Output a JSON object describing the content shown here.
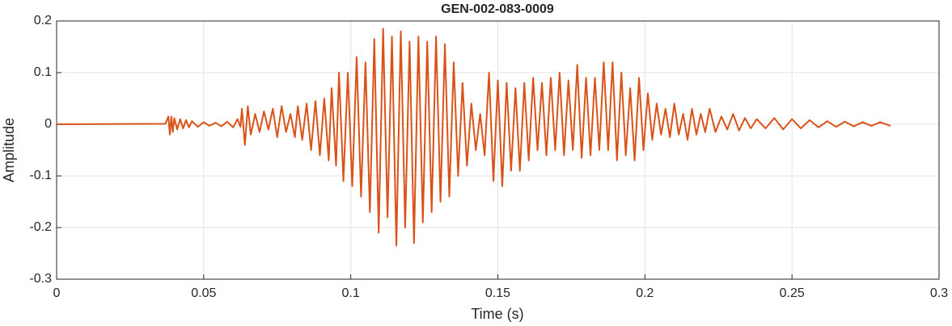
{
  "chart_data": {
    "type": "line",
    "title": "GEN-002-083-0009",
    "x_label": "Time (s)",
    "y_label": "Amplitude",
    "xlim": [
      0,
      0.3
    ],
    "ylim": [
      -0.3,
      0.2
    ],
    "xticks": [
      0,
      0.05,
      0.1,
      0.15,
      0.2,
      0.25,
      0.3
    ],
    "yticks": [
      -0.3,
      -0.2,
      -0.1,
      0,
      0.1,
      0.2
    ],
    "grid": true,
    "series": [
      {
        "name": "Amplitude",
        "color": "#d95319",
        "x": [
          0,
          0.037,
          0.038,
          0.0385,
          0.039,
          0.0395,
          0.04,
          0.041,
          0.042,
          0.043,
          0.044,
          0.045,
          0.046,
          0.048,
          0.05,
          0.052,
          0.054,
          0.056,
          0.058,
          0.06,
          0.0615,
          0.0625,
          0.063,
          0.064,
          0.065,
          0.066,
          0.0675,
          0.069,
          0.0705,
          0.072,
          0.0735,
          0.075,
          0.0765,
          0.078,
          0.0795,
          0.081,
          0.082,
          0.0835,
          0.085,
          0.0865,
          0.088,
          0.0895,
          0.091,
          0.0925,
          0.0935,
          0.095,
          0.096,
          0.0975,
          0.099,
          0.1005,
          0.102,
          0.1035,
          0.105,
          0.1065,
          0.108,
          0.1095,
          0.111,
          0.1125,
          0.114,
          0.1155,
          0.117,
          0.1185,
          0.12,
          0.1215,
          0.123,
          0.1245,
          0.126,
          0.1275,
          0.129,
          0.1305,
          0.132,
          0.1335,
          0.135,
          0.1365,
          0.138,
          0.1395,
          0.141,
          0.1425,
          0.144,
          0.1455,
          0.147,
          0.1485,
          0.15,
          0.1515,
          0.153,
          0.1545,
          0.156,
          0.1575,
          0.159,
          0.1605,
          0.162,
          0.1635,
          0.165,
          0.1665,
          0.168,
          0.1695,
          0.171,
          0.1725,
          0.174,
          0.1755,
          0.177,
          0.1785,
          0.18,
          0.1815,
          0.183,
          0.1845,
          0.186,
          0.1875,
          0.189,
          0.1905,
          0.192,
          0.1935,
          0.195,
          0.1965,
          0.198,
          0.1995,
          0.201,
          0.2025,
          0.204,
          0.2055,
          0.207,
          0.2085,
          0.21,
          0.2115,
          0.213,
          0.2145,
          0.216,
          0.2175,
          0.219,
          0.2205,
          0.222,
          0.224,
          0.226,
          0.228,
          0.23,
          0.232,
          0.234,
          0.236,
          0.238,
          0.241,
          0.244,
          0.247,
          0.25,
          0.253,
          0.256,
          0.259,
          0.262,
          0.265,
          0.268,
          0.271,
          0.274,
          0.277,
          0.28,
          0.2835
        ],
        "values": [
          0,
          0.001,
          0.015,
          -0.02,
          0.015,
          -0.015,
          0.012,
          -0.01,
          0.01,
          -0.008,
          0.008,
          -0.006,
          0.006,
          -0.005,
          0.004,
          -0.003,
          0.003,
          -0.004,
          0.005,
          -0.006,
          0.01,
          -0.005,
          0.03,
          -0.04,
          0.035,
          -0.02,
          0.02,
          -0.015,
          0.025,
          -0.01,
          0.03,
          -0.025,
          0.035,
          -0.015,
          0.02,
          -0.025,
          0.035,
          -0.03,
          0.04,
          -0.05,
          0.045,
          -0.06,
          0.05,
          -0.07,
          0.07,
          -0.08,
          0.1,
          -0.11,
          0.1,
          -0.12,
          0.13,
          -0.14,
          0.12,
          -0.17,
          0.165,
          -0.21,
          0.185,
          -0.18,
          0.17,
          -0.235,
          0.18,
          -0.2,
          0.16,
          -0.23,
          0.17,
          -0.19,
          0.16,
          -0.17,
          0.17,
          -0.15,
          0.155,
          -0.14,
          0.12,
          -0.1,
          0.08,
          -0.08,
          0.04,
          -0.05,
          0.02,
          -0.06,
          0.1,
          -0.11,
          0.085,
          -0.12,
          0.08,
          -0.09,
          0.07,
          -0.09,
          0.08,
          -0.07,
          0.09,
          -0.05,
          0.08,
          -0.06,
          0.09,
          -0.05,
          0.1,
          -0.06,
          0.085,
          -0.05,
          0.115,
          -0.065,
          0.09,
          -0.06,
          0.09,
          -0.05,
          0.12,
          -0.05,
          0.12,
          -0.07,
          0.1,
          -0.06,
          0.07,
          -0.07,
          0.09,
          -0.05,
          0.06,
          -0.03,
          0.04,
          -0.02,
          0.03,
          -0.025,
          0.04,
          -0.02,
          0.02,
          -0.03,
          0.03,
          -0.02,
          0.02,
          -0.015,
          0.03,
          -0.015,
          0.015,
          -0.01,
          0.02,
          -0.012,
          0.012,
          -0.008,
          0.01,
          -0.008,
          0.012,
          -0.01,
          0.01,
          -0.008,
          0.008,
          -0.006,
          0.006,
          -0.005,
          0.005,
          -0.004,
          0.004,
          -0.003,
          0.004,
          -0.003
        ]
      }
    ]
  }
}
